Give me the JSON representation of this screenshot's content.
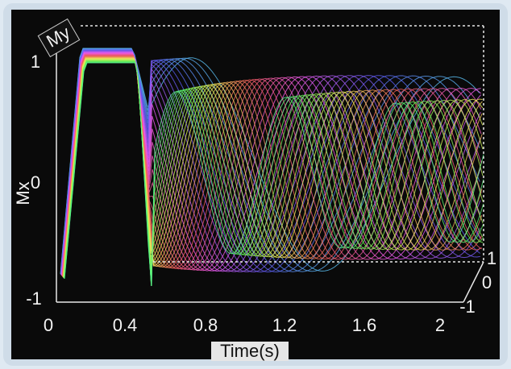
{
  "labels": {
    "my": "My",
    "mx": "Mx",
    "time": "Time(s)"
  },
  "time_ticks": [
    "0",
    "0.4",
    "0.8",
    "1.2",
    "1.6",
    "2"
  ],
  "mx_ticks": [
    "1",
    "0",
    "-1"
  ],
  "my_ticks": [
    "1",
    "0",
    "-1"
  ]
}
